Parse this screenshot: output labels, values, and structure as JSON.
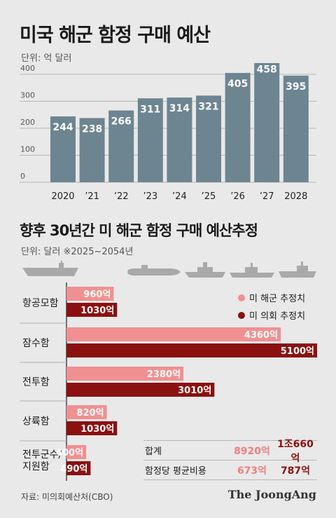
{
  "title": "미국 해군 함정 구매 예산",
  "unit1": "단위: 억 달러",
  "chart_data": [
    {
      "type": "bar",
      "title": "미국 해군 함정 구매 예산",
      "unit": "단위: 억 달러",
      "categories": [
        "2020",
        "’21",
        "’22",
        "’23",
        "’24",
        "’25",
        "’26",
        "’27",
        "2028"
      ],
      "values": [
        244,
        238,
        266,
        311,
        314,
        321,
        405,
        458,
        395
      ],
      "yticks": [
        "0",
        "100",
        "200",
        "300",
        "400"
      ],
      "ylim": [
        0,
        460
      ],
      "color": "#6d8590",
      "grid": true
    },
    {
      "type": "bar",
      "orientation": "horizontal",
      "title": "향후 30년간 미 해군 함정 구매 예산추정",
      "unit": "단위: 달러  ※2025~2054년",
      "categories": [
        "항공모함",
        "잠수함",
        "전투함",
        "상륙함",
        "전투군수/\n지원함"
      ],
      "series": [
        {
          "name": "미 해군 추정치",
          "values": [
            960,
            4360,
            2380,
            820,
            400
          ],
          "labels": [
            "960억",
            "4360억",
            "2380억",
            "820억",
            "400억"
          ],
          "color": "#f09090"
        },
        {
          "name": "미 의회 추정치",
          "values": [
            1030,
            5100,
            3010,
            1030,
            490
          ],
          "labels": [
            "1030억",
            "5100억",
            "3010억",
            "1030억",
            "490억"
          ],
          "color": "#8b1010"
        }
      ]
    }
  ],
  "summary": [
    {
      "label": "합계",
      "navy": "8920억",
      "congress": "1조660억"
    },
    {
      "label": "함정당 평균비용",
      "navy": "673억",
      "congress": "787억"
    }
  ],
  "source": "자료: 미의회예산처(CBO)",
  "logo": "The JoongAng"
}
